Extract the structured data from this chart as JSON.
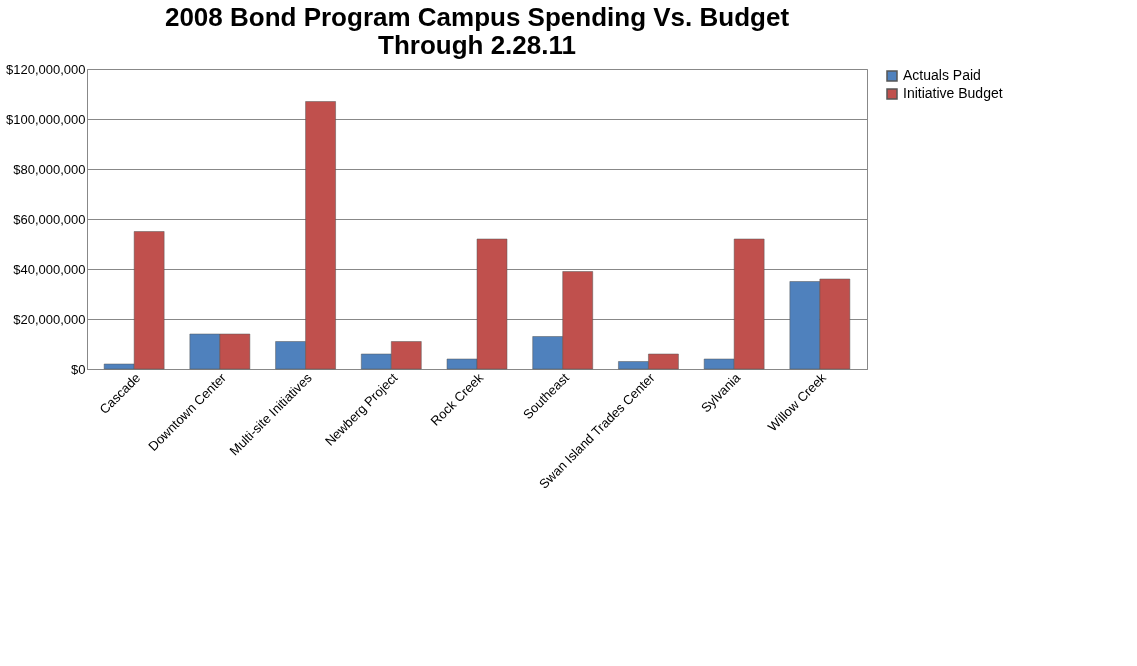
{
  "chart_data": {
    "type": "bar",
    "title": "2008 Bond Program Campus Spending Vs. Budget\nThrough 2.28.11",
    "categories": [
      "Cascade",
      "Downtown Center",
      "Multi-site Initiatives",
      "Newberg Project",
      "Rock Creek",
      "Southeast",
      "Swan Island Trades Center",
      "Sylvania",
      "Willow Creek"
    ],
    "series": [
      {
        "name": "Actuals Paid",
        "color": "#4f81bd",
        "values": [
          2000000,
          14000000,
          11000000,
          6000000,
          4000000,
          13000000,
          3000000,
          4000000,
          35000000
        ]
      },
      {
        "name": "Initiative Budget",
        "color": "#c0504d",
        "values": [
          55000000,
          14000000,
          107000000,
          11000000,
          52000000,
          39000000,
          6000000,
          52000000,
          36000000
        ]
      }
    ],
    "ylim": [
      0,
      120000000
    ],
    "yticks": [
      {
        "value": 0,
        "label": "$0"
      },
      {
        "value": 20000000,
        "label": "$20,000,000"
      },
      {
        "value": 40000000,
        "label": "$40,000,000"
      },
      {
        "value": 60000000,
        "label": "$60,000,000"
      },
      {
        "value": 80000000,
        "label": "$80,000,000"
      },
      {
        "value": 100000000,
        "label": "$100,000,000"
      },
      {
        "value": 120000000,
        "label": "$120,000,000"
      }
    ],
    "grid": "y",
    "legend": "right"
  }
}
